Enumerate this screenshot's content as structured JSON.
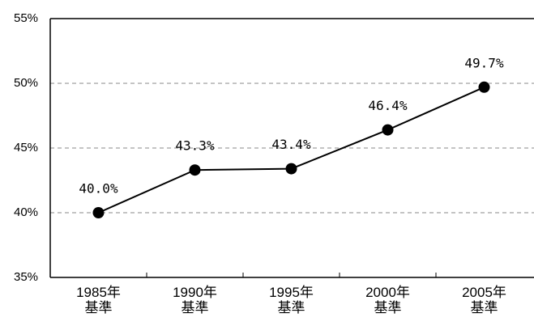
{
  "chart_data": {
    "type": "line",
    "categories": [
      "1985年\n基準",
      "1990年\n基準",
      "1995年\n基準",
      "2000年\n基準",
      "2005年\n基準"
    ],
    "series": [
      {
        "color": "#000000",
        "values": [
          40.0,
          43.3,
          43.4,
          46.4,
          49.7
        ],
        "value_labels": [
          "40.0%",
          "43.3%",
          "43.4%",
          "46.4%",
          "49.7%"
        ]
      }
    ],
    "ylim": [
      35,
      55
    ],
    "yticks": [
      {
        "value": 35,
        "label": "35%"
      },
      {
        "value": 40,
        "label": "40%"
      },
      {
        "value": 45,
        "label": "45%"
      },
      {
        "value": 50,
        "label": "50%"
      },
      {
        "value": 55,
        "label": "55%"
      }
    ],
    "grid": true
  }
}
